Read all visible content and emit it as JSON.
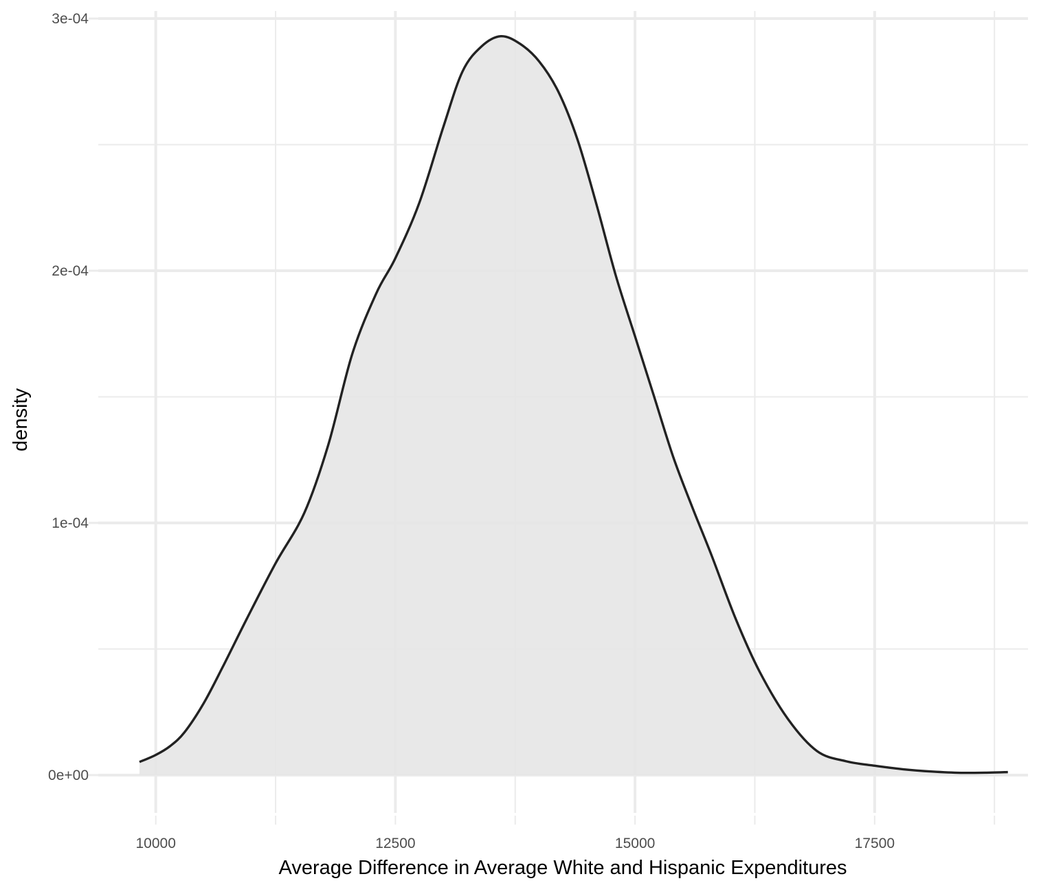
{
  "chart_data": {
    "type": "area",
    "title": "",
    "xlabel": "Average Difference in Average White and Hispanic Expenditures",
    "ylabel": "density",
    "xlim": [
      9400,
      19100
    ],
    "ylim": [
      -1.5e-05,
      0.000303
    ],
    "x_ticks": [
      10000,
      12500,
      15000,
      17500
    ],
    "x_tick_labels": [
      "10000",
      "12500",
      "15000",
      "17500"
    ],
    "x_minor_ticks": [
      11250,
      13750,
      16250,
      18750
    ],
    "y_ticks": [
      0,
      0.0001,
      0.0002,
      0.0003
    ],
    "y_tick_labels": [
      "0e+00",
      "1e-04",
      "2e-04",
      "3e-04"
    ],
    "y_minor_ticks": [
      5e-05,
      0.00015,
      0.00025
    ],
    "grid": true,
    "legend": "none",
    "colors": {
      "fill": "#e6e6e6",
      "line": "#222222",
      "grid": "#ebebeb",
      "tick_text": "#4d4d4d"
    },
    "series": [
      {
        "x": [
          9830,
          10000,
          10150,
          10300,
          10500,
          10700,
          10950,
          11250,
          11550,
          11800,
          12050,
          12300,
          12500,
          12750,
          13000,
          13200,
          13400,
          13600,
          13800,
          14000,
          14200,
          14400,
          14600,
          14800,
          15000,
          15200,
          15400,
          15600,
          15800,
          16050,
          16300,
          16600,
          16900,
          17200,
          17500,
          17800,
          18100,
          18400,
          18700,
          18890
        ],
        "y": [
          5.2e-06,
          8e-06,
          1.15e-05,
          1.7e-05,
          2.85e-05,
          4.3e-05,
          6.2e-05,
          8.4e-05,
          0.000104,
          0.000131,
          0.000167,
          0.000191,
          0.000205,
          0.000227,
          0.000257,
          0.000279,
          0.000289,
          0.000293,
          0.00029,
          0.000283,
          0.000271,
          0.000252,
          0.000226,
          0.000198,
          0.000174,
          0.00015,
          0.000126,
          0.000106,
          8.7e-05,
          6.2e-05,
          4.1e-05,
          2.2e-05,
          9.5e-06,
          5.5e-06,
          3.7e-06,
          2.3e-06,
          1.4e-06,
          9e-07,
          1e-06,
          1.2e-06
        ]
      }
    ]
  }
}
